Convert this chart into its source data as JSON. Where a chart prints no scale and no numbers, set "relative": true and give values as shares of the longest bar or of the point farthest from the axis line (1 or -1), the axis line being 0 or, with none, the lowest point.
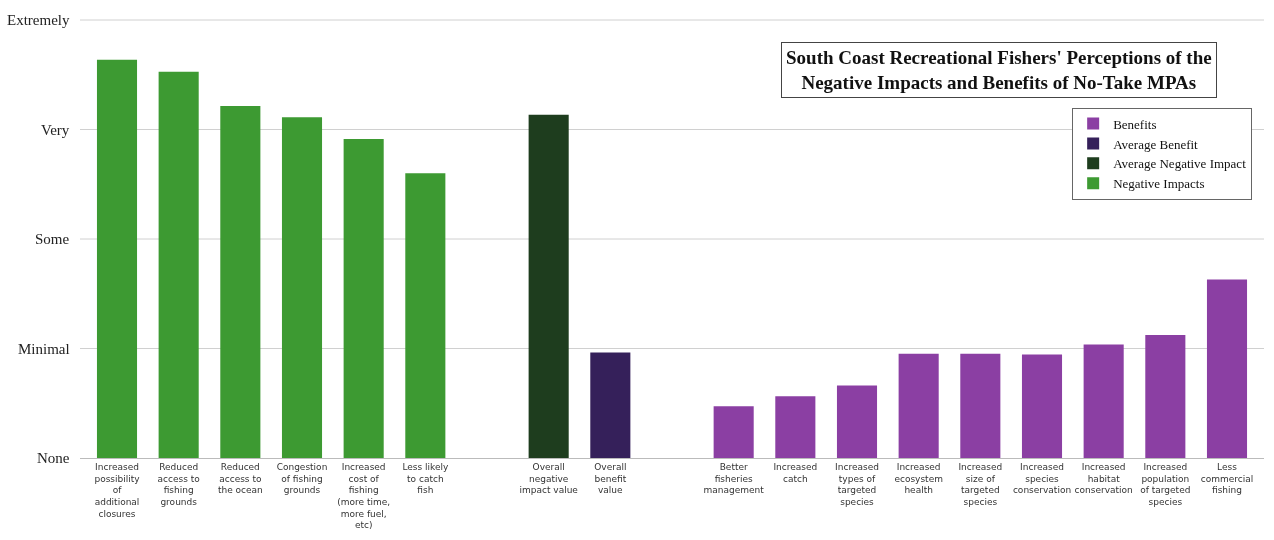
{
  "chart_data": {
    "type": "bar",
    "title": "South Coast Recreational Fishers' Perceptions of the Negative Impacts and Benefits of No-Take MPAs",
    "categories": [
      "Increased possibility of additional closures",
      "Reduced access to fishing grounds",
      "Reduced access to the ocean",
      "Congestion of fishing grounds",
      "Increased cost of fishing (more time, more fuel, etc)",
      "Less likely to catch fish",
      null,
      "Overall negative impact value",
      "Overall benefit value",
      null,
      "Better fisheries management",
      "Increased catch",
      "Increased types of targeted species",
      "Increased ecosystem health",
      "Increased size of targeted species",
      "Increased species conservation",
      "Increased habitat conservation",
      "Increased population of targeted species",
      "Less commercial fishing"
    ],
    "relative": true,
    "series": [
      {
        "name": "Benefits",
        "color": "#8b3fa3",
        "values": [
          null,
          null,
          null,
          null,
          null,
          null,
          null,
          null,
          null,
          null,
          0.13,
          0.155,
          0.182,
          0.262,
          0.262,
          0.26,
          0.285,
          0.309,
          0.448
        ]
      },
      {
        "name": "Average Benefit",
        "color": "#35205a",
        "values": [
          null,
          null,
          null,
          null,
          null,
          null,
          null,
          null,
          0.265,
          null,
          null,
          null,
          null,
          null,
          null,
          null,
          null,
          null,
          null
        ]
      },
      {
        "name": "Average Negative Impact",
        "color": "#1e3d1e",
        "values": [
          null,
          null,
          null,
          null,
          null,
          null,
          null,
          0.862,
          null,
          null,
          null,
          null,
          null,
          null,
          null,
          null,
          null,
          null,
          null
        ]
      },
      {
        "name": "Negative Impacts",
        "color": "#3d9a32",
        "values": [
          1,
          0.97,
          0.884,
          0.856,
          0.801,
          0.715,
          null,
          null,
          null,
          null,
          null,
          null,
          null,
          null,
          null,
          null,
          null,
          null,
          null
        ]
      }
    ],
    "annotations": [
      "None",
      "Minimal",
      "Some",
      "Very",
      "Extremely"
    ],
    "grid": "y",
    "legend": "top right"
  }
}
